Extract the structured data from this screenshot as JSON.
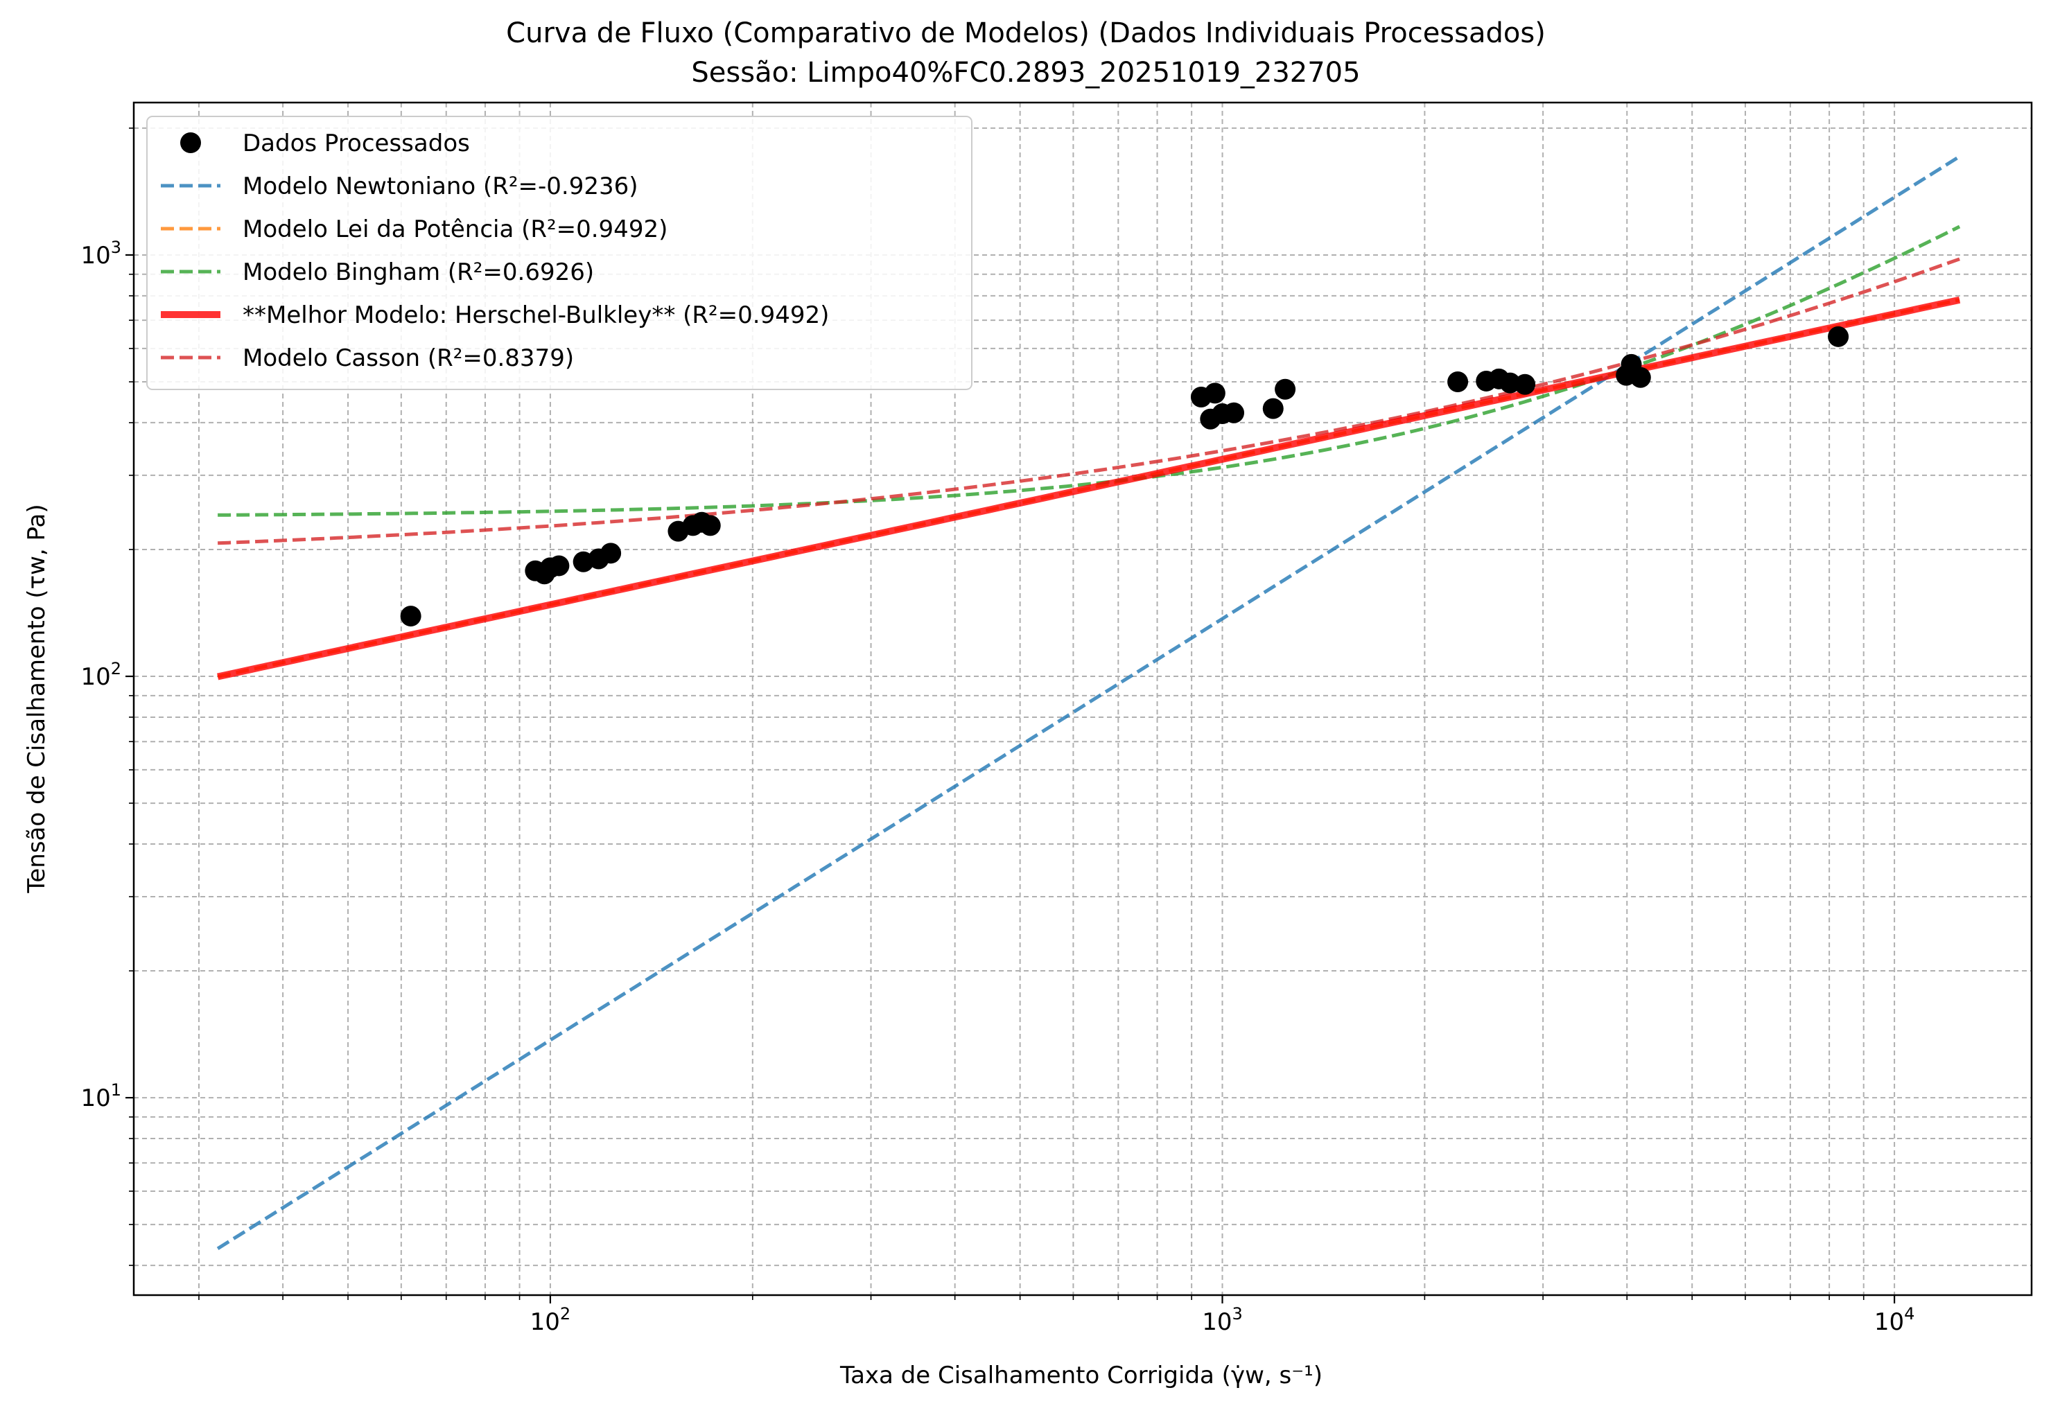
{
  "chart_data": {
    "type": "scatter",
    "title": "Curva de Fluxo (Comparativo de Modelos) (Dados Individuais Processados)",
    "subtitle": "Sessão: Limpo40%FC0.2893_20251019_232705",
    "xlabel": "Taxa de Cisalhamento Corrigida (γ̇w, s⁻¹)",
    "ylabel": "Tensão de Cisalhamento (τw, Pa)",
    "xscale": "log",
    "yscale": "log",
    "xlim": [
      24,
      16000
    ],
    "ylim": [
      3.4,
      2300
    ],
    "grid": true,
    "grid_which": "both",
    "legend_position": "top-left",
    "x_ticks": [
      {
        "value": 100,
        "base": "10",
        "exp": "2"
      },
      {
        "value": 1000,
        "base": "10",
        "exp": "3"
      },
      {
        "value": 10000,
        "base": "10",
        "exp": "4"
      }
    ],
    "y_ticks": [
      {
        "value": 10,
        "base": "10",
        "exp": "1"
      },
      {
        "value": 100,
        "base": "10",
        "exp": "2"
      },
      {
        "value": 1000,
        "base": "10",
        "exp": "3"
      }
    ],
    "scatter": {
      "name": "Dados Processados",
      "color": "#000000",
      "points": [
        [
          62,
          139
        ],
        [
          95,
          178
        ],
        [
          98,
          175
        ],
        [
          100,
          181
        ],
        [
          103,
          183
        ],
        [
          112,
          187
        ],
        [
          118,
          190
        ],
        [
          123,
          196
        ],
        [
          155,
          221
        ],
        [
          163,
          228
        ],
        [
          168,
          232
        ],
        [
          173,
          228
        ],
        [
          930,
          460
        ],
        [
          975,
          470
        ],
        [
          960,
          408
        ],
        [
          1000,
          420
        ],
        [
          1040,
          422
        ],
        [
          1190,
          432
        ],
        [
          1240,
          480
        ],
        [
          2240,
          500
        ],
        [
          2470,
          502
        ],
        [
          2580,
          508
        ],
        [
          2680,
          497
        ],
        [
          2820,
          493
        ],
        [
          3990,
          518
        ],
        [
          4060,
          550
        ],
        [
          4190,
          512
        ],
        [
          8250,
          640
        ]
      ]
    },
    "series": [
      {
        "name": "Modelo Newtoniano (R²=-0.9236)",
        "color": "#1f77b4",
        "style": "dashed",
        "model": "newtonian",
        "params": {
          "mu": 0.137
        }
      },
      {
        "name": "Modelo Lei da Potência (R²=0.9492)",
        "color": "#ff7f0e",
        "style": "dashed",
        "model": "power",
        "params": {
          "K": 30.2,
          "n": 0.345
        }
      },
      {
        "name": "Modelo Bingham (R²=0.6926)",
        "color": "#2ca02c",
        "style": "dashed",
        "model": "bingham",
        "params": {
          "tau0": 239,
          "mu": 0.0743
        }
      },
      {
        "name": "**Melhor Modelo: Herschel-Bulkley** (R²=0.9492)",
        "color": "#ff0000",
        "style": "solid",
        "model": "power",
        "params": {
          "K": 30.2,
          "n": 0.345
        }
      },
      {
        "name": "Modelo Casson (R²=0.8379)",
        "color": "#d62728",
        "style": "dashed",
        "model": "casson",
        "params": {
          "tau0": 182,
          "mu": 0.0253
        }
      }
    ],
    "model_x_range": [
      32,
      12500
    ]
  }
}
